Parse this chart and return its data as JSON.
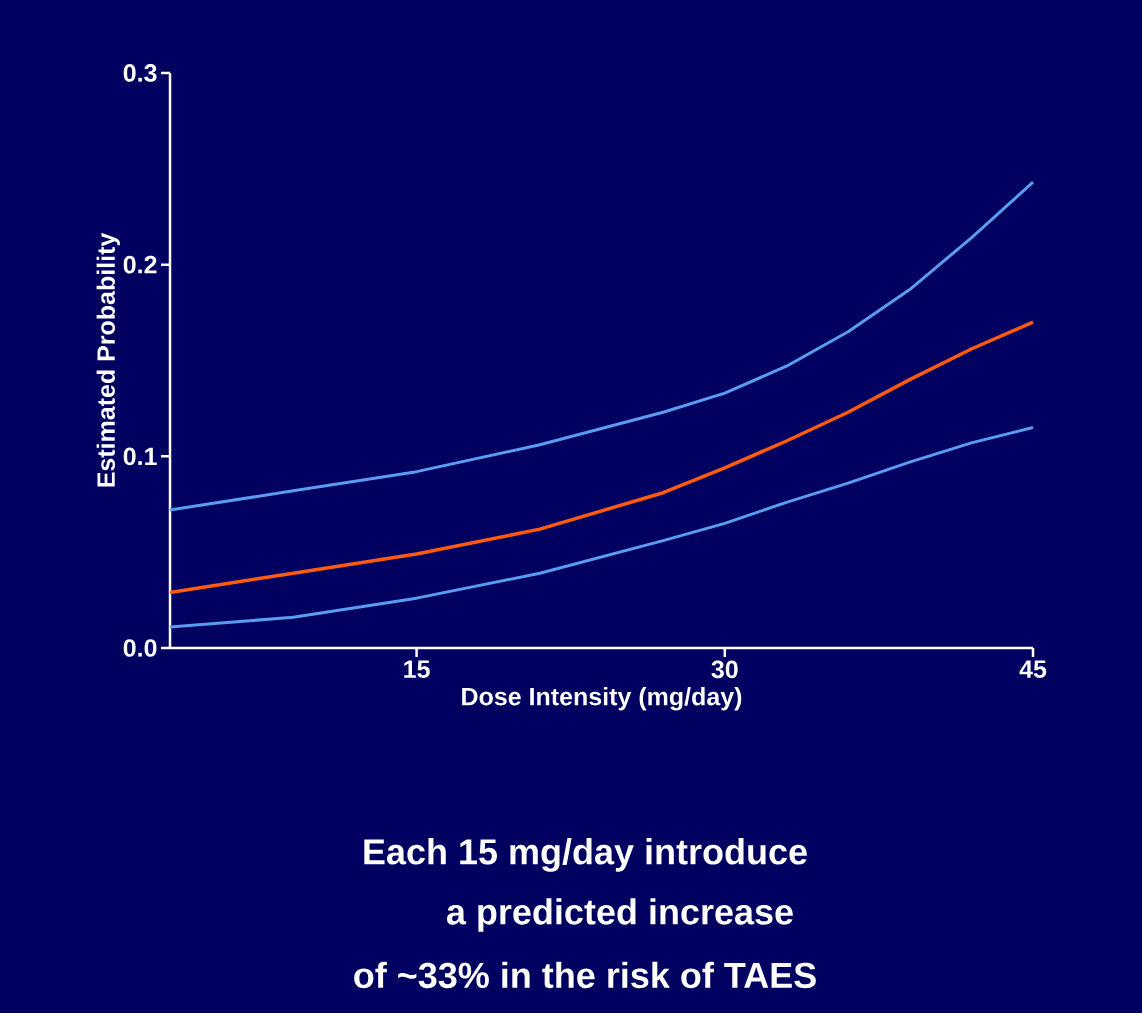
{
  "chart_data": {
    "type": "line",
    "xlabel": "Dose Intensity (mg/day)",
    "ylabel": "Estimated Probability",
    "annotations": [
      "Each 15 mg/day introduce",
      "a predicted increase",
      "of ~33% in the risk of TAES"
    ],
    "x": [
      3,
      9,
      15,
      21,
      27,
      30,
      33,
      36,
      39,
      42,
      45
    ],
    "series": [
      {
        "color": "#5a9cf0",
        "values": [
          0.072,
          0.082,
          0.092,
          0.106,
          0.123,
          0.133,
          0.147,
          0.165,
          0.187,
          0.214,
          0.243
        ]
      },
      {
        "color": "#ff5a10",
        "values": [
          0.029,
          0.039,
          0.049,
          0.062,
          0.081,
          0.094,
          0.108,
          0.123,
          0.14,
          0.156,
          0.17
        ]
      },
      {
        "color": "#5a9cf0",
        "values": [
          0.011,
          0.016,
          0.026,
          0.039,
          0.056,
          0.065,
          0.076,
          0.086,
          0.097,
          0.107,
          0.115
        ]
      }
    ],
    "xlim": [
      3,
      45
    ],
    "xticks": [
      15,
      30,
      45
    ],
    "ylim": [
      0,
      0.3
    ],
    "yticks": [
      {
        "value": 0,
        "label": "0.0"
      },
      {
        "value": 0.1,
        "label": "0.1"
      },
      {
        "value": 0.2,
        "label": "0.2"
      },
      {
        "value": 0.3,
        "label": "0.3"
      }
    ],
    "marker": "none",
    "line_style": "solid",
    "grid": false
  }
}
